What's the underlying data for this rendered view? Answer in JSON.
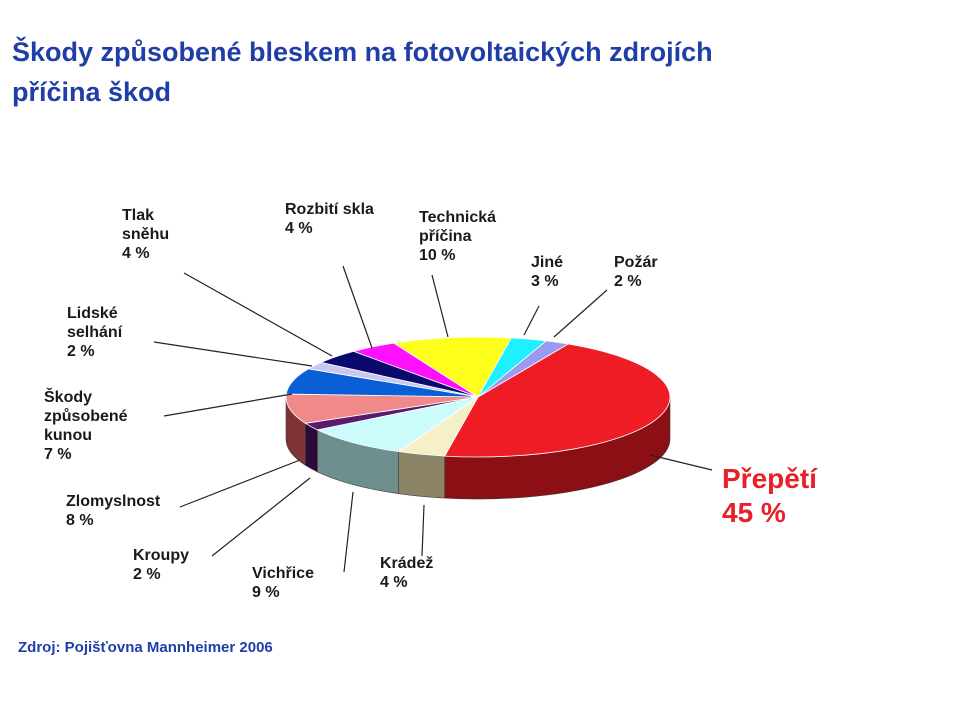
{
  "title_line1": "Škody způsobené bleskem na fotovoltaických zdrojích",
  "title_line2": "příčina škod",
  "source": "Zdroj: Pojišťovna Mannheimer  2006",
  "chart_data": {
    "type": "pie",
    "start_order": [
      "Přepětí",
      "Krádež",
      "Vichřice",
      "Kroupy",
      "Zlomyslnost",
      "Škody způsobené kunou",
      "Lidské selhání",
      "Tlak sněhu",
      "Rozbití skla",
      "Technická příčina",
      "Jiné",
      "Požár"
    ],
    "slices": [
      {
        "key": "prepeti",
        "name_lines": [
          "Přepětí"
        ],
        "value": 45,
        "value_label": "45 %",
        "color": "#ee1c24",
        "side": "#8b0f14"
      },
      {
        "key": "kradez",
        "name_lines": [
          "Krádež"
        ],
        "value": 4,
        "value_label": "4 %",
        "color": "#f5f0c8",
        "side": "#8c8466"
      },
      {
        "key": "vichrice",
        "name_lines": [
          "Vichřice"
        ],
        "value": 9,
        "value_label": "9 %",
        "color": "#ccfbfb",
        "side": "#6f8e8e"
      },
      {
        "key": "kroupy",
        "name_lines": [
          "Kroupy"
        ],
        "value": 2,
        "value_label": "2 %",
        "color": "#5a1a6e",
        "side": "#2c0a38"
      },
      {
        "key": "zlomyslnost",
        "name_lines": [
          "Zlomyslnost"
        ],
        "value": 8,
        "value_label": "8 %",
        "color": "#f08a8a",
        "side": "#7e3434"
      },
      {
        "key": "kuna",
        "name_lines": [
          "Škody",
          "způsobené",
          "kunou"
        ],
        "value": 7,
        "value_label": "7 %",
        "color": "#0a5fd6",
        "side": "#04306d"
      },
      {
        "key": "lidske",
        "name_lines": [
          "Lidské",
          "selhání"
        ],
        "value": 2,
        "value_label": "2 %",
        "color": "#c8c8f0",
        "side": "#6a6a8a"
      },
      {
        "key": "snih",
        "name_lines": [
          "Tlak",
          "sněhu"
        ],
        "value": 4,
        "value_label": "4 %",
        "color": "#0a0a6e",
        "side": "#05053a"
      },
      {
        "key": "sklo",
        "name_lines": [
          "Rozbití skla"
        ],
        "value": 4,
        "value_label": "4 %",
        "color": "#ff10ff",
        "side": "#8a008a"
      },
      {
        "key": "technicka",
        "name_lines": [
          "Technická",
          "příčina"
        ],
        "value": 10,
        "value_label": "10 %",
        "color": "#ffff1c",
        "side": "#8a8a00"
      },
      {
        "key": "jine",
        "name_lines": [
          "Jiné"
        ],
        "value": 3,
        "value_label": "3 %",
        "color": "#1ef0ff",
        "side": "#0f8088"
      },
      {
        "key": "pozar",
        "name_lines": [
          "Požár"
        ],
        "value": 2,
        "value_label": "2 %",
        "color": "#9a9af0",
        "side": "#4f4f8a"
      }
    ]
  }
}
